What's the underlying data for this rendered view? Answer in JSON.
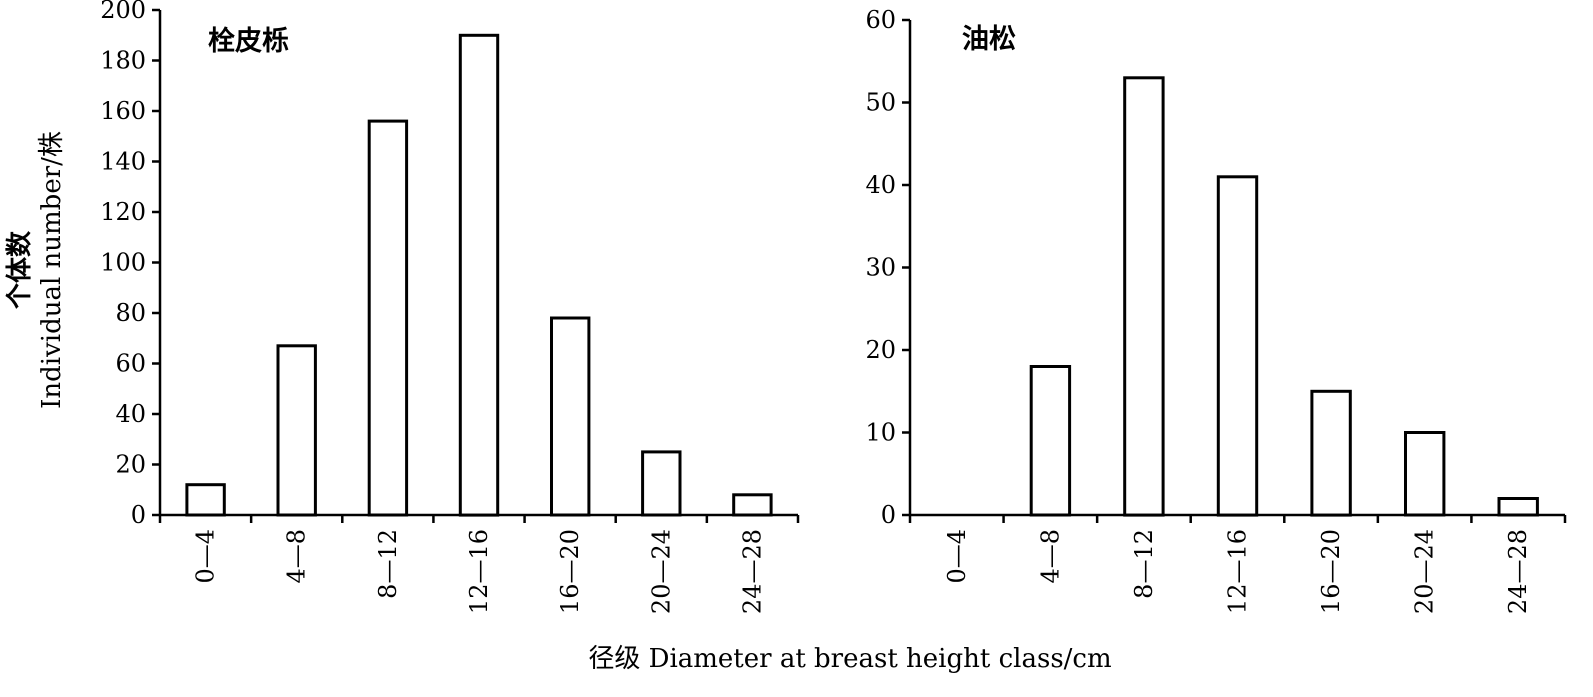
{
  "chart_data": [
    {
      "type": "bar",
      "title": "栓皮栎",
      "categories": [
        "0—4",
        "4—8",
        "8—12",
        "12—16",
        "16—20",
        "20—24",
        "24—28"
      ],
      "values": [
        12,
        67,
        156,
        190,
        78,
        25,
        8
      ],
      "ylim": [
        0,
        200
      ],
      "yticks": [
        0,
        20,
        40,
        60,
        80,
        100,
        120,
        140,
        160,
        180,
        200
      ],
      "grid": false
    },
    {
      "type": "bar",
      "title": "油松",
      "categories": [
        "0—4",
        "4—8",
        "8—12",
        "12—16",
        "16—20",
        "20—24",
        "24—28"
      ],
      "values": [
        0,
        18,
        53,
        41,
        15,
        10,
        2
      ],
      "ylim": [
        0,
        60
      ],
      "yticks": [
        0,
        10,
        20,
        30,
        40,
        50,
        60
      ],
      "grid": false
    }
  ],
  "ylabel_cn": "个体数",
  "ylabel_en": "Individual number/株",
  "xlabel": "径级 Diameter at breast height class/cm",
  "colors": {
    "bar_fill": "#ffffff",
    "bar_stroke": "#000000"
  }
}
